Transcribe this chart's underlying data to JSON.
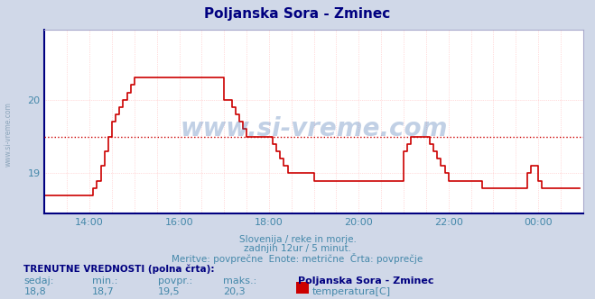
{
  "title": "Poljanska Sora - Zminec",
  "title_color": "#000080",
  "bg_color": "#d0d8e8",
  "plot_bg_color": "#ffffff",
  "grid_color": "#ffaaaa",
  "x_label_color": "#4488aa",
  "y_label_color": "#4488aa",
  "line_color": "#cc0000",
  "line_width": 1.2,
  "avg_line_color": "#cc0000",
  "avg_value": 19.5,
  "ylim": [
    18.45,
    20.95
  ],
  "yticks": [
    19.0,
    20.0
  ],
  "watermark": "www.si-vreme.com",
  "watermark_color": "#3366aa",
  "sub_text1": "Slovenija / reke in morje.",
  "sub_text2": "zadnjih 12ur / 5 minut.",
  "sub_text3": "Meritve: povprečne  Enote: metrične  Črta: povprečje",
  "label_trenutne": "TRENUTNE VREDNOSTI (polna črta):",
  "label_sedaj": "sedaj:",
  "label_min": "min.:",
  "label_povpr": "povpr.:",
  "label_maks": "maks.:",
  "val_sedaj": "18,8",
  "val_min": "18,7",
  "val_povpr": "19,5",
  "val_maks": "20,3",
  "legend_name": "Poljanska Sora - Zminec",
  "legend_var": "temperatura[C]",
  "legend_color": "#cc0000",
  "time_data": [
    18.7,
    18.7,
    18.7,
    18.7,
    18.7,
    18.7,
    18.7,
    18.7,
    18.7,
    18.7,
    18.7,
    18.7,
    18.7,
    18.8,
    18.9,
    19.1,
    19.3,
    19.5,
    19.7,
    19.8,
    19.9,
    20.0,
    20.1,
    20.2,
    20.3,
    20.3,
    20.3,
    20.3,
    20.3,
    20.3,
    20.3,
    20.3,
    20.3,
    20.3,
    20.3,
    20.3,
    20.3,
    20.3,
    20.3,
    20.3,
    20.3,
    20.3,
    20.3,
    20.3,
    20.3,
    20.3,
    20.3,
    20.3,
    20.0,
    20.0,
    19.9,
    19.8,
    19.7,
    19.6,
    19.5,
    19.5,
    19.5,
    19.5,
    19.5,
    19.5,
    19.5,
    19.4,
    19.3,
    19.2,
    19.1,
    19.0,
    19.0,
    19.0,
    19.0,
    19.0,
    19.0,
    19.0,
    18.9,
    18.9,
    18.9,
    18.9,
    18.9,
    18.9,
    18.9,
    18.9,
    18.9,
    18.9,
    18.9,
    18.9,
    18.9,
    18.9,
    18.9,
    18.9,
    18.9,
    18.9,
    18.9,
    18.9,
    18.9,
    18.9,
    18.9,
    18.9,
    19.3,
    19.4,
    19.5,
    19.5,
    19.5,
    19.5,
    19.5,
    19.4,
    19.3,
    19.2,
    19.1,
    19.0,
    18.9,
    18.9,
    18.9,
    18.9,
    18.9,
    18.9,
    18.9,
    18.9,
    18.9,
    18.8,
    18.8,
    18.8,
    18.8,
    18.8,
    18.8,
    18.8,
    18.8,
    18.8,
    18.8,
    18.8,
    18.8,
    19.0,
    19.1,
    19.1,
    18.9,
    18.8,
    18.8,
    18.8,
    18.8,
    18.8,
    18.8,
    18.8,
    18.8,
    18.8,
    18.8,
    18.8
  ],
  "show_tick_positions": [
    12,
    36,
    60,
    84,
    108,
    132
  ],
  "show_tick_labels": [
    "14:00",
    "16:00",
    "18:00",
    "20:00",
    "22:00",
    "00:00"
  ],
  "all_tick_positions": [
    0,
    6,
    12,
    18,
    24,
    30,
    36,
    42,
    48,
    54,
    60,
    66,
    72,
    78,
    84,
    90,
    96,
    102,
    108,
    114,
    120,
    126,
    132,
    138
  ]
}
